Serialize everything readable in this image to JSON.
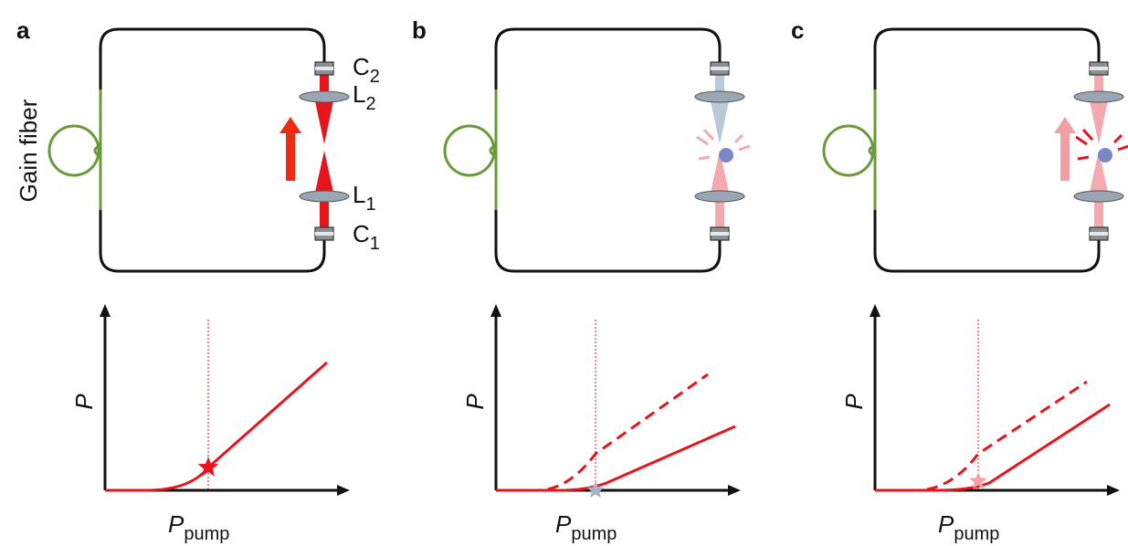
{
  "panels": [
    {
      "label": "a"
    },
    {
      "label": "b"
    },
    {
      "label": "c"
    }
  ],
  "gain_fiber": "Gain fiber",
  "components": [
    {
      "base": "C",
      "sub": "2"
    },
    {
      "base": "L",
      "sub": "2"
    },
    {
      "base": "L",
      "sub": "1"
    },
    {
      "base": "C",
      "sub": "1"
    }
  ],
  "y_axis_label": "P",
  "x_axis_label": {
    "base": "P",
    "sub": "pump"
  }
}
